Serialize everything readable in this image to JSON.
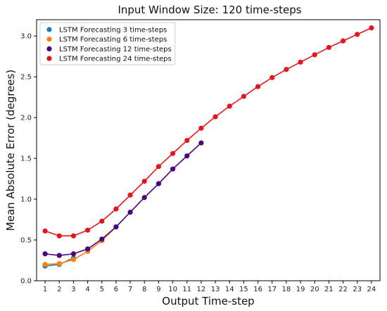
{
  "chart_data": {
    "type": "line",
    "title": "Input Window Size: 120 time-steps",
    "xlabel": "Output Time-step",
    "ylabel": "Mean Absolute Error (degrees)",
    "xlim": [
      0.4,
      24.6
    ],
    "ylim": [
      0.0,
      3.2
    ],
    "xticks": [
      1,
      2,
      3,
      4,
      5,
      6,
      7,
      8,
      9,
      10,
      11,
      12,
      13,
      14,
      15,
      16,
      17,
      18,
      19,
      20,
      21,
      22,
      23,
      24
    ],
    "yticks": [
      0.0,
      0.5,
      1.0,
      1.5,
      2.0,
      2.5,
      3.0
    ],
    "ytick_labels": [
      "0.0",
      "0.5",
      "1.0",
      "1.5",
      "2.0",
      "2.5",
      "3.0"
    ],
    "legend_position": "top-left",
    "grid": false,
    "series": [
      {
        "name": "LSTM Forecasting 3 time-steps",
        "color": "#1f77b4",
        "x": [
          1,
          2,
          3
        ],
        "values": [
          0.18,
          0.2,
          0.28
        ]
      },
      {
        "name": "LSTM Forecasting 6 time-steps",
        "color": "#ff7f0e",
        "x": [
          1,
          2,
          3,
          4,
          5,
          6
        ],
        "values": [
          0.2,
          0.21,
          0.26,
          0.36,
          0.49,
          0.66
        ]
      },
      {
        "name": "LSTM Forecasting 12 time-steps",
        "color": "#4b0082",
        "x": [
          1,
          2,
          3,
          4,
          5,
          6,
          7,
          8,
          9,
          10,
          11,
          12
        ],
        "values": [
          0.33,
          0.31,
          0.33,
          0.39,
          0.51,
          0.66,
          0.84,
          1.02,
          1.19,
          1.37,
          1.53,
          1.69
        ]
      },
      {
        "name": "LSTM Forecasting 24 time-steps",
        "color": "#e8141b",
        "x": [
          1,
          2,
          3,
          4,
          5,
          6,
          7,
          8,
          9,
          10,
          11,
          12,
          13,
          14,
          15,
          16,
          17,
          18,
          19,
          20,
          21,
          22,
          23,
          24
        ],
        "values": [
          0.61,
          0.55,
          0.55,
          0.62,
          0.73,
          0.88,
          1.05,
          1.22,
          1.4,
          1.56,
          1.72,
          1.87,
          2.01,
          2.14,
          2.26,
          2.38,
          2.49,
          2.59,
          2.68,
          2.77,
          2.86,
          2.94,
          3.02,
          3.1
        ]
      }
    ]
  }
}
